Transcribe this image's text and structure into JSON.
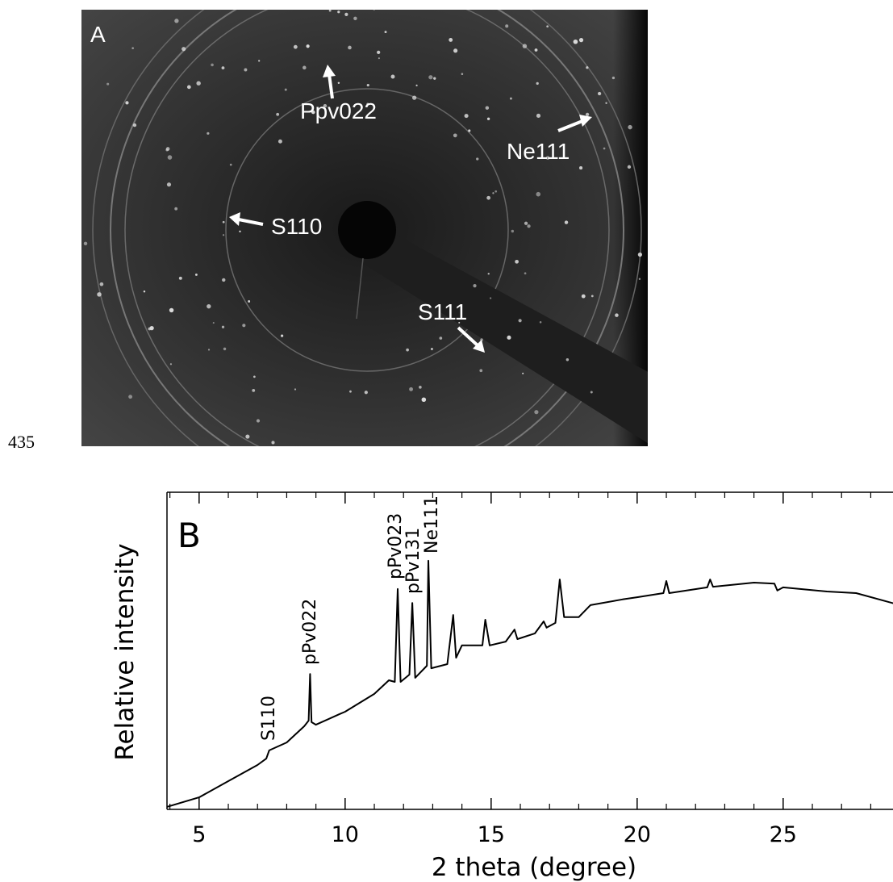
{
  "page_number": "435",
  "panel_a": {
    "label": "A",
    "annotations": [
      "Ppv022",
      "Ne111",
      "S110",
      "S111"
    ]
  },
  "chart_data": {
    "type": "line",
    "panel_label": "B",
    "x_label": "2 theta (degree)",
    "y_label": "Relative intensity",
    "x": [
      3.9,
      5,
      6,
      7,
      7.3,
      7.4,
      8,
      8.6,
      8.75,
      8.8,
      8.85,
      9,
      9.8,
      10,
      11,
      11.5,
      11.7,
      11.8,
      11.9,
      12.2,
      12.3,
      12.4,
      12.8,
      12.85,
      12.95,
      13.5,
      13.7,
      13.8,
      14,
      14.7,
      14.8,
      14.95,
      15.5,
      15.8,
      15.9,
      16.5,
      16.8,
      16.9,
      17.2,
      17.35,
      17.5,
      18,
      18.4,
      19.5,
      20,
      20.9,
      21,
      21.1,
      22.4,
      22.5,
      22.6,
      24,
      24.7,
      24.8,
      25,
      26.5,
      27.5,
      28.8
    ],
    "values": [
      0.8,
      3.8,
      8.9,
      14.0,
      16.0,
      18.6,
      21.1,
      26.2,
      28.0,
      42.7,
      27.5,
      26.7,
      30.0,
      30.8,
      36.4,
      40.7,
      40.2,
      69.5,
      40.2,
      42.5,
      65.1,
      41.5,
      45.3,
      78.4,
      44.5,
      45.8,
      61.3,
      47.8,
      51.7,
      51.7,
      59.8,
      51.7,
      52.9,
      56.7,
      53.7,
      55.5,
      59.3,
      57.3,
      58.8,
      72.5,
      60.6,
      60.6,
      64.4,
      66.2,
      66.9,
      68.2,
      72.0,
      68.2,
      70.0,
      72.5,
      70.2,
      71.5,
      71.2,
      69.0,
      70.0,
      68.7,
      68.2,
      64.9
    ],
    "color": "#000000",
    "xlim": [
      3.9,
      28.8
    ],
    "ylim": [
      0,
      100
    ],
    "xticks": [
      5,
      10,
      15,
      20,
      25
    ],
    "minor_xticks": [
      4,
      6,
      7,
      8,
      9,
      11,
      12,
      13,
      14,
      16,
      17,
      18,
      19,
      21,
      22,
      23,
      24,
      26,
      27,
      28
    ],
    "annotations": [
      "S110",
      "pPv022",
      "pPv023",
      "pPv131",
      "Ne111"
    ]
  }
}
